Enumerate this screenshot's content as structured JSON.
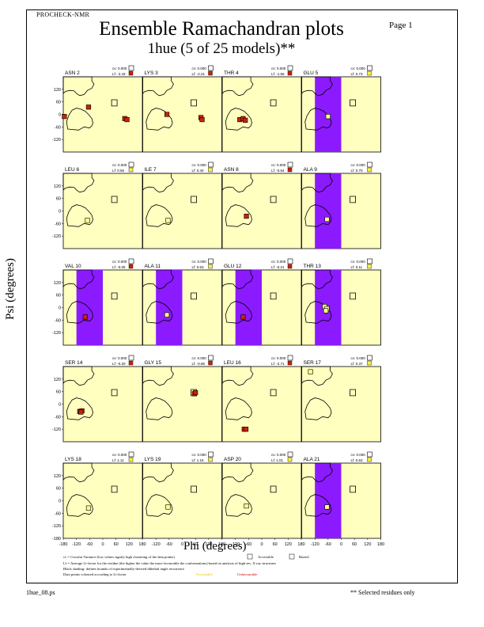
{
  "header": {
    "program": "PROCHECK-NMR",
    "page": "Page  1",
    "title": "Ensemble Ramachandran plots",
    "subtitle": "1hue (5 of 25 models)**"
  },
  "footer": {
    "left": "1hue_08.ps",
    "right": "** Selected residues only"
  },
  "notes": {
    "cv": "cv = Circular Variance (low values signify high clustering of the data points)",
    "accessible": "Accessible",
    "buried": "Buried",
    "lf": "Lf = Average Li-factor for the residue (the higher the value the more favourable the conformations) based on analysis of high-res. X-ray structures",
    "boundaries": "Black shading: defines bounds of experimentally-derived dihedral angle recurrence",
    "colouring": "Data points coloured according to Li-factor",
    "favourable": "Favourable",
    "unfavourable": "Unfavourable"
  },
  "chart_data": {
    "type": "scatter",
    "xlabel": "Phi (degrees)",
    "ylabel": "Psi (degrees)",
    "xlim": [
      -180,
      180
    ],
    "ylim": [
      -180,
      180
    ],
    "xticks": [
      -180,
      -120,
      -60,
      0,
      60,
      120,
      180
    ],
    "yticks": [
      -120,
      -60,
      0,
      60,
      120
    ],
    "yticklabels": [
      "-120",
      "-60",
      "0",
      "60",
      "120"
    ],
    "xtick_labels": [
      "-180",
      "-120",
      "-60",
      "0",
      "60",
      "120",
      "180",
      "-120",
      "-60",
      "0",
      "60",
      "120",
      "180",
      "-120",
      "-60",
      "0",
      "60",
      "120",
      "180",
      "-120",
      "-60",
      "0",
      "60",
      "120",
      "180"
    ],
    "bottom_ylabels": [
      "-120",
      "-60",
      "0",
      "60",
      "120",
      "-180"
    ],
    "colors": {
      "panel_bg": "#ffffc0",
      "gly_band": "#8c1aff",
      "point": "#cc2200",
      "point_fill_light": "#ffff88"
    },
    "panels": [
      {
        "residue": "ASN 2",
        "cv": "cv: 0.000",
        "lf": "Lf: -2.43",
        "band": false,
        "points": [
          [
            -175,
            -10
          ],
          [
            -65,
            35
          ],
          [
            100,
            -20
          ],
          [
            110,
            -25
          ]
        ]
      },
      {
        "residue": "LYS 3",
        "cv": "cv: 0.000",
        "lf": "Lf: -2.21",
        "band": false,
        "points": [
          [
            -70,
            0
          ],
          [
            85,
            -15
          ],
          [
            90,
            -25
          ]
        ]
      },
      {
        "residue": "THR 4",
        "cv": "cv: 0.000",
        "lf": "Lf: -1.56",
        "band": false,
        "points": [
          [
            -100,
            -25
          ],
          [
            -85,
            -20
          ],
          [
            -75,
            -28
          ]
        ]
      },
      {
        "residue": "GLU 5",
        "cv": "cv: 0.000",
        "lf": "Lf: 0.73",
        "band": true,
        "points": [
          [
            -60,
            -10
          ]
        ]
      },
      {
        "residue": "LEU 6",
        "cv": "cv: 0.000",
        "lf": "Lf: 0.56",
        "band": false,
        "points": [
          [
            -70,
            -45
          ]
        ]
      },
      {
        "residue": "ILE 7",
        "cv": "cv: 0.000",
        "lf": "Lf: 0.40",
        "band": false,
        "points": [
          [
            -65,
            -45
          ]
        ]
      },
      {
        "residue": "ASN 8",
        "cv": "cv: 0.000",
        "lf": "Lf: -0.54",
        "band": false,
        "points": [
          [
            -70,
            -25
          ]
        ]
      },
      {
        "residue": "ALA 9",
        "cv": "cv: 0.000",
        "lf": "Lf: 0.70",
        "band": true,
        "points": [
          [
            -65,
            -40
          ]
        ]
      },
      {
        "residue": "VAL 10",
        "cv": "cv: 0.000",
        "lf": "Lf: -0.05",
        "band": true,
        "points": [
          [
            -80,
            -45
          ]
        ]
      },
      {
        "residue": "ALA 11",
        "cv": "cv: 0.000",
        "lf": "Lf: 0.63",
        "band": true,
        "points": [
          [
            -70,
            -35
          ]
        ]
      },
      {
        "residue": "GLU 12",
        "cv": "cv: 0.000",
        "lf": "Lf: -0.21",
        "band": true,
        "points": [
          [
            -85,
            -45
          ]
        ]
      },
      {
        "residue": "THR 13",
        "cv": "cv: 0.000",
        "lf": "Lf: 0.11",
        "band": true,
        "points": [
          [
            -75,
            5
          ],
          [
            -65,
            -5
          ],
          [
            -70,
            -15
          ]
        ]
      },
      {
        "residue": "SER 14",
        "cv": "cv: 0.000",
        "lf": "Lf: -0.20",
        "band": false,
        "points": [
          [
            -105,
            -35
          ],
          [
            -95,
            -32
          ],
          [
            -100,
            -38
          ]
        ]
      },
      {
        "residue": "GLY 15",
        "cv": "cv: 0.000",
        "lf": "Lf: -0.85",
        "band": false,
        "points": [
          [
            55,
            50
          ],
          [
            60,
            55
          ]
        ]
      },
      {
        "residue": "LEU 16",
        "cv": "cv: 0.000",
        "lf": "Lf: -2.71",
        "band": false,
        "points": [
          [
            -80,
            -120
          ],
          [
            -72,
            -120
          ]
        ]
      },
      {
        "residue": "SER 17",
        "cv": "cv: 0.000",
        "lf": "Lf: 0.37",
        "band": false,
        "points": [
          [
            -140,
            155
          ]
        ]
      },
      {
        "residue": "LYS 18",
        "cv": "cv: 0.000",
        "lf": "Lf: 1.11",
        "band": false,
        "points": [
          [
            -65,
            -35
          ]
        ]
      },
      {
        "residue": "LYS 19",
        "cv": "cv: 0.000",
        "lf": "Lf: 1.16",
        "band": false,
        "points": [
          [
            -65,
            -30
          ]
        ]
      },
      {
        "residue": "ASP 20",
        "cv": "cv: 0.000",
        "lf": "Lf: 1.01",
        "band": false,
        "points": [
          [
            -70,
            -25
          ]
        ]
      },
      {
        "residue": "ALA 21",
        "cv": "cv: 0.000",
        "lf": "Lf: 0.63",
        "band": true,
        "points": [
          [
            -65,
            -30
          ]
        ]
      }
    ]
  }
}
